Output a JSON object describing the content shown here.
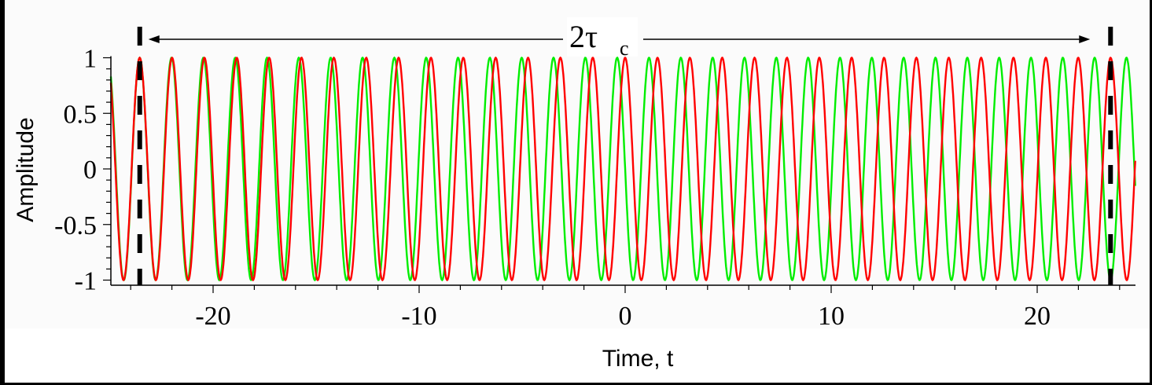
{
  "chart_data": {
    "type": "line",
    "title": "",
    "xlabel": "Time, t",
    "ylabel": "Amplitude",
    "xlim": [
      -25,
      25
    ],
    "ylim": [
      -1,
      1
    ],
    "grid": false,
    "legend": null,
    "x_ticks": [
      -20,
      -10,
      0,
      10,
      20
    ],
    "x_tick_labels": [
      "-20",
      "-10",
      "0",
      "10",
      "20"
    ],
    "x_minor_step": 2,
    "y_ticks": [
      1,
      0.5,
      0,
      -0.5,
      -1
    ],
    "y_tick_labels": [
      "1",
      "0.5",
      "0",
      "-0.5",
      "-1"
    ],
    "y_minor_step": 0.1,
    "series": [
      {
        "name": "red wave",
        "color": "#ff0000",
        "form": "A*cos(w*t + phi)",
        "amplitude": 1,
        "angular_frequency": 4.0,
        "phase": 0,
        "peaks_t": [
          -23.56,
          -21.99,
          -20.42,
          -18.85,
          -17.28,
          -15.71,
          -14.14,
          -12.57,
          -11.0,
          -9.42,
          -7.85,
          -6.28,
          -4.71,
          -3.14,
          -1.57,
          0,
          1.57,
          3.14,
          4.71,
          6.28,
          7.85,
          9.42,
          11.0,
          12.57,
          14.14,
          15.71,
          17.28,
          18.85,
          20.42,
          21.99,
          23.56
        ]
      },
      {
        "name": "green wave",
        "color": "#00ee00",
        "form": "A*cos(w*t + phi)",
        "amplitude": 1,
        "angular_frequency": 4.0667,
        "phase": 1.5708,
        "note_visible": "in phase with red at t = -2.356e1 (left dashed line), quarter-period lead at t = 0, half-period offset at right dashed line"
      }
    ],
    "annotations": [
      {
        "type": "vline-dashed",
        "x": -23.56,
        "color": "#000000"
      },
      {
        "type": "vline-dashed",
        "x": 23.56,
        "color": "#000000"
      },
      {
        "type": "double-arrow",
        "from": -23.56,
        "to": 23.56,
        "label": "2τ",
        "label_subscript": "c"
      }
    ]
  },
  "labels": {
    "xlabel": "Time, t",
    "ylabel": "Amplitude",
    "span_main": "2τ",
    "span_sub": "c"
  }
}
